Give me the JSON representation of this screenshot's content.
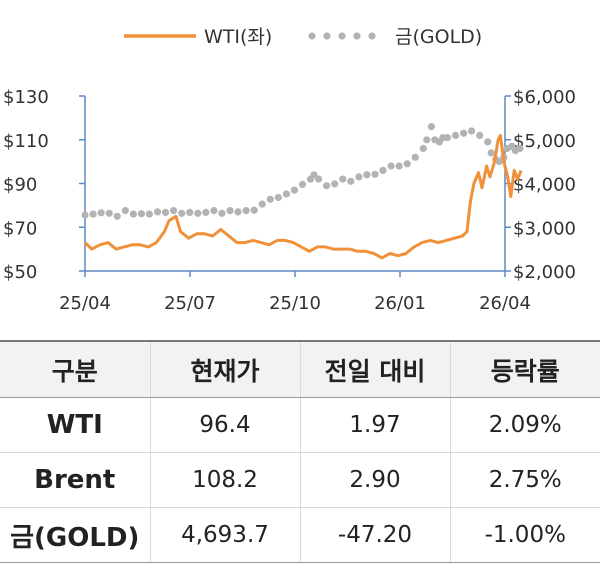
{
  "chart_data": {
    "type": "line",
    "x_tick_labels": [
      "25/04",
      "25/07",
      "25/10",
      "26/01",
      "26/04"
    ],
    "y_left_ticks": [
      "$130",
      "$110",
      "$90",
      "$70",
      "$50"
    ],
    "y_right_ticks": [
      "$6,000",
      "$5,000",
      "$4,000",
      "$3,000",
      "$2,000"
    ],
    "y_left_range": [
      50,
      130
    ],
    "y_right_range": [
      2000,
      6000
    ],
    "x_range": [
      "2025-04-01",
      "2026-04-01"
    ],
    "legend_position": "top",
    "series": [
      {
        "name": "WTI(좌)",
        "axis": "left",
        "style": "line",
        "color": "#f0913a",
        "points": [
          [
            "2025-04-01",
            63
          ],
          [
            "2025-04-07",
            60
          ],
          [
            "2025-04-14",
            62
          ],
          [
            "2025-04-21",
            63
          ],
          [
            "2025-04-28",
            60
          ],
          [
            "2025-05-05",
            61
          ],
          [
            "2025-05-12",
            62
          ],
          [
            "2025-05-19",
            62
          ],
          [
            "2025-05-26",
            61
          ],
          [
            "2025-06-02",
            63
          ],
          [
            "2025-06-09",
            68
          ],
          [
            "2025-06-13",
            73
          ],
          [
            "2025-06-19",
            75
          ],
          [
            "2025-06-23",
            68
          ],
          [
            "2025-06-30",
            65
          ],
          [
            "2025-07-07",
            67
          ],
          [
            "2025-07-14",
            67
          ],
          [
            "2025-07-21",
            66
          ],
          [
            "2025-07-28",
            69
          ],
          [
            "2025-08-04",
            66
          ],
          [
            "2025-08-11",
            63
          ],
          [
            "2025-08-18",
            63
          ],
          [
            "2025-08-25",
            64
          ],
          [
            "2025-09-01",
            63
          ],
          [
            "2025-09-08",
            62
          ],
          [
            "2025-09-15",
            64
          ],
          [
            "2025-09-22",
            64
          ],
          [
            "2025-09-29",
            63
          ],
          [
            "2025-10-06",
            61
          ],
          [
            "2025-10-13",
            59
          ],
          [
            "2025-10-20",
            61
          ],
          [
            "2025-10-27",
            61
          ],
          [
            "2025-11-03",
            60
          ],
          [
            "2025-11-10",
            60
          ],
          [
            "2025-11-17",
            60
          ],
          [
            "2025-11-24",
            59
          ],
          [
            "2025-12-01",
            59
          ],
          [
            "2025-12-08",
            58
          ],
          [
            "2025-12-15",
            56
          ],
          [
            "2025-12-22",
            58
          ],
          [
            "2025-12-29",
            57
          ],
          [
            "2026-01-05",
            58
          ],
          [
            "2026-01-12",
            61
          ],
          [
            "2026-01-19",
            63
          ],
          [
            "2026-01-26",
            64
          ],
          [
            "2026-02-02",
            63
          ],
          [
            "2026-02-09",
            64
          ],
          [
            "2026-02-16",
            65
          ],
          [
            "2026-02-23",
            66
          ],
          [
            "2026-02-27",
            68
          ],
          [
            "2026-03-02",
            82
          ],
          [
            "2026-03-05",
            90
          ],
          [
            "2026-03-09",
            95
          ],
          [
            "2026-03-12",
            88
          ],
          [
            "2026-03-16",
            98
          ],
          [
            "2026-03-19",
            93
          ],
          [
            "2026-03-23",
            100
          ],
          [
            "2026-03-26",
            110
          ],
          [
            "2026-03-28",
            112
          ],
          [
            "2026-03-31",
            100
          ],
          [
            "2026-04-03",
            94
          ],
          [
            "2026-04-06",
            84
          ],
          [
            "2026-04-09",
            96
          ],
          [
            "2026-04-12",
            92
          ],
          [
            "2026-04-15",
            96
          ]
        ]
      },
      {
        "name": "금(GOLD)",
        "axis": "right",
        "style": "dots",
        "color": "#b3b3b3",
        "points": [
          [
            "2025-04-01",
            3280
          ],
          [
            "2025-04-08",
            3300
          ],
          [
            "2025-04-15",
            3330
          ],
          [
            "2025-04-22",
            3320
          ],
          [
            "2025-04-29",
            3250
          ],
          [
            "2025-05-06",
            3380
          ],
          [
            "2025-05-13",
            3300
          ],
          [
            "2025-05-20",
            3310
          ],
          [
            "2025-05-27",
            3300
          ],
          [
            "2025-06-03",
            3350
          ],
          [
            "2025-06-10",
            3340
          ],
          [
            "2025-06-17",
            3380
          ],
          [
            "2025-06-24",
            3320
          ],
          [
            "2025-07-01",
            3340
          ],
          [
            "2025-07-08",
            3320
          ],
          [
            "2025-07-15",
            3340
          ],
          [
            "2025-07-22",
            3380
          ],
          [
            "2025-07-29",
            3320
          ],
          [
            "2025-08-05",
            3380
          ],
          [
            "2025-08-12",
            3350
          ],
          [
            "2025-08-19",
            3380
          ],
          [
            "2025-08-26",
            3390
          ],
          [
            "2025-09-02",
            3530
          ],
          [
            "2025-09-09",
            3640
          ],
          [
            "2025-09-16",
            3680
          ],
          [
            "2025-09-23",
            3760
          ],
          [
            "2025-09-30",
            3850
          ],
          [
            "2025-10-07",
            3980
          ],
          [
            "2025-10-14",
            4100
          ],
          [
            "2025-10-17",
            4200
          ],
          [
            "2025-10-21",
            4100
          ],
          [
            "2025-10-28",
            3950
          ],
          [
            "2025-11-04",
            3990
          ],
          [
            "2025-11-11",
            4100
          ],
          [
            "2025-11-18",
            4050
          ],
          [
            "2025-11-25",
            4150
          ],
          [
            "2025-12-02",
            4200
          ],
          [
            "2025-12-09",
            4210
          ],
          [
            "2025-12-16",
            4300
          ],
          [
            "2025-12-23",
            4400
          ],
          [
            "2025-12-30",
            4400
          ],
          [
            "2026-01-06",
            4450
          ],
          [
            "2026-01-13",
            4600
          ],
          [
            "2026-01-20",
            4800
          ],
          [
            "2026-01-23",
            5000
          ],
          [
            "2026-01-27",
            5300
          ],
          [
            "2026-01-30",
            5000
          ],
          [
            "2026-02-03",
            4950
          ],
          [
            "2026-02-06",
            5050
          ],
          [
            "2026-02-10",
            5050
          ],
          [
            "2026-02-17",
            5100
          ],
          [
            "2026-02-24",
            5150
          ],
          [
            "2026-03-03",
            5200
          ],
          [
            "2026-03-10",
            5100
          ],
          [
            "2026-03-17",
            4950
          ],
          [
            "2026-03-20",
            4700
          ],
          [
            "2026-03-24",
            4550
          ],
          [
            "2026-03-27",
            4500
          ],
          [
            "2026-03-31",
            4600
          ],
          [
            "2026-04-03",
            4800
          ],
          [
            "2026-04-07",
            4850
          ],
          [
            "2026-04-10",
            4750
          ],
          [
            "2026-04-14",
            4800
          ]
        ]
      }
    ]
  },
  "table": {
    "headers": [
      "구분",
      "현재가",
      "전일 대비",
      "등락률"
    ],
    "rows": [
      [
        "WTI",
        "96.4",
        "1.97",
        "2.09%"
      ],
      [
        "Brent",
        "108.2",
        "2.90",
        "2.75%"
      ],
      [
        "금(GOLD)",
        "4,693.7",
        "-47.20",
        "-1.00%"
      ]
    ]
  }
}
